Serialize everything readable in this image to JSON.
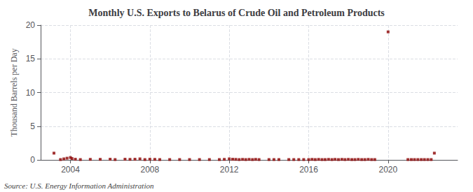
{
  "chart_data": {
    "type": "scatter",
    "title": "Monthly U.S. Exports to Belarus of Crude Oil and Petroleum Products",
    "ylabel": "Thousand Barrels per Day",
    "annotations": [
      "Source: U.S. Energy Information Administration"
    ],
    "color": "#8b0000",
    "marker": "square",
    "grid": true,
    "xlim": [
      2002.5,
      2023.5
    ],
    "xticks": [
      2004,
      2008,
      2012,
      2016,
      2020
    ],
    "ylim": [
      0,
      20
    ],
    "yticks": [
      0,
      5,
      10,
      15,
      20
    ],
    "x": [
      2003.17,
      2003.5,
      2003.67,
      2003.83,
      2004.0,
      2004.08,
      2004.25,
      2004.5,
      2005.0,
      2005.5,
      2006.0,
      2006.25,
      2006.75,
      2007.0,
      2007.25,
      2007.5,
      2007.75,
      2008.0,
      2008.25,
      2008.5,
      2009.0,
      2009.5,
      2010.0,
      2010.5,
      2011.0,
      2011.5,
      2011.75,
      2012.0,
      2012.17,
      2012.33,
      2012.5,
      2012.67,
      2012.83,
      2013.0,
      2013.17,
      2013.33,
      2013.5,
      2014.0,
      2014.25,
      2014.5,
      2015.0,
      2015.25,
      2015.5,
      2015.75,
      2016.0,
      2016.17,
      2016.33,
      2016.5,
      2016.67,
      2016.83,
      2017.0,
      2017.17,
      2017.33,
      2017.5,
      2017.67,
      2017.83,
      2018.0,
      2018.17,
      2018.33,
      2018.5,
      2018.67,
      2018.83,
      2019.0,
      2019.17,
      2019.33,
      2020.0,
      2021.0,
      2021.17,
      2021.33,
      2021.5,
      2021.67,
      2021.83,
      2022.0,
      2022.17,
      2022.33
    ],
    "values": [
      1.0,
      0.05,
      0.15,
      0.25,
      0.35,
      0.2,
      0.1,
      0.05,
      0.08,
      0.08,
      0.1,
      0.05,
      0.1,
      0.08,
      0.1,
      0.15,
      0.05,
      0.1,
      0.08,
      0.05,
      0.05,
      0.05,
      0.05,
      0.05,
      0.05,
      0.05,
      0.08,
      0.15,
      0.1,
      0.08,
      0.05,
      0.08,
      0.05,
      0.08,
      0.05,
      0.08,
      0.05,
      0.05,
      0.05,
      0.05,
      0.05,
      0.05,
      0.05,
      0.05,
      0.05,
      0.08,
      0.05,
      0.08,
      0.05,
      0.05,
      0.08,
      0.05,
      0.08,
      0.05,
      0.08,
      0.05,
      0.08,
      0.05,
      0.05,
      0.08,
      0.05,
      0.05,
      0.08,
      0.05,
      0.05,
      19.0,
      0.05,
      0.05,
      0.05,
      0.05,
      0.05,
      0.05,
      0.05,
      0.05,
      1.0
    ]
  }
}
